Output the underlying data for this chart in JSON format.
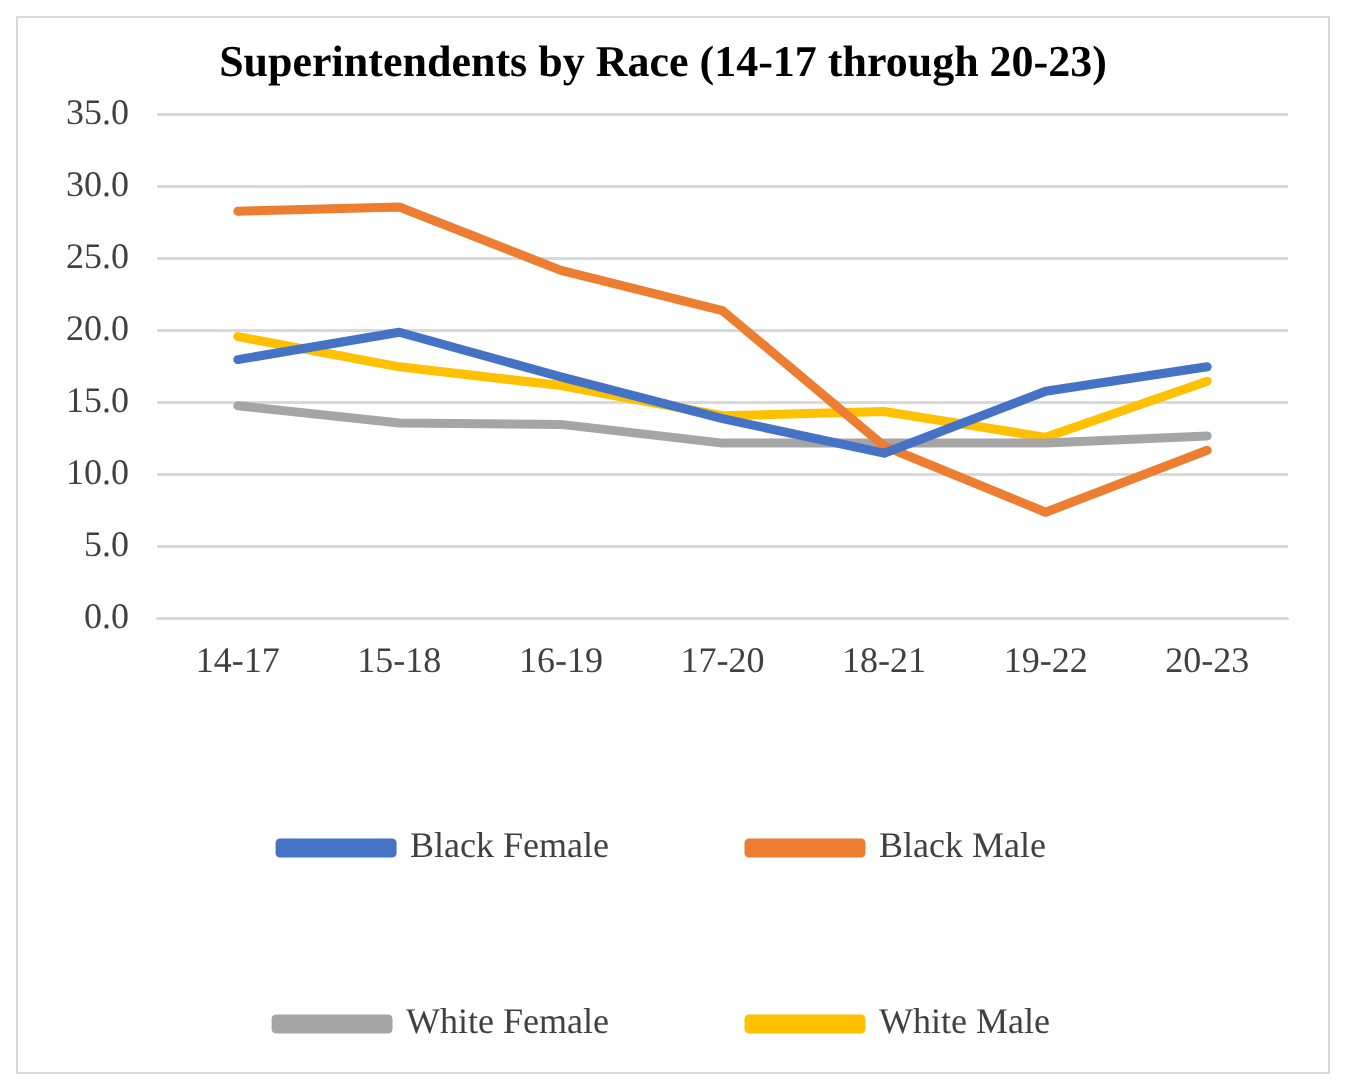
{
  "chart_data": {
    "type": "line",
    "title": "Superintendents by Race (14-17 through 20-23)",
    "categories": [
      "14-17",
      "15-18",
      "16-19",
      "17-20",
      "18-21",
      "19-22",
      "20-23"
    ],
    "series": [
      {
        "name": "Black Female",
        "color": "#4472c4",
        "values": [
          18.0,
          19.9,
          16.8,
          13.9,
          11.5,
          15.8,
          17.5
        ]
      },
      {
        "name": "Black Male",
        "color": "#ed7d31",
        "values": [
          28.3,
          28.6,
          24.2,
          21.4,
          12.0,
          7.4,
          11.7
        ]
      },
      {
        "name": "White Female",
        "color": "#a5a5a5",
        "values": [
          14.8,
          13.6,
          13.5,
          12.2,
          12.2,
          12.2,
          12.7
        ]
      },
      {
        "name": "White Male",
        "color": "#ffc000",
        "values": [
          19.6,
          17.5,
          16.2,
          14.1,
          14.4,
          12.6,
          16.5
        ]
      }
    ],
    "ylim": [
      0,
      35
    ],
    "yticks": [
      {
        "value": 0,
        "label": "0.0"
      },
      {
        "value": 5,
        "label": "5.0"
      },
      {
        "value": 10,
        "label": "10.0"
      },
      {
        "value": 15,
        "label": "15.0"
      },
      {
        "value": 20,
        "label": "20.0"
      },
      {
        "value": 25,
        "label": "25.0"
      },
      {
        "value": 30,
        "label": "30.0"
      },
      {
        "value": 35,
        "label": "35.0"
      }
    ],
    "grid": "y",
    "legend": "bottom",
    "marker": "none",
    "line_style": "solid"
  }
}
